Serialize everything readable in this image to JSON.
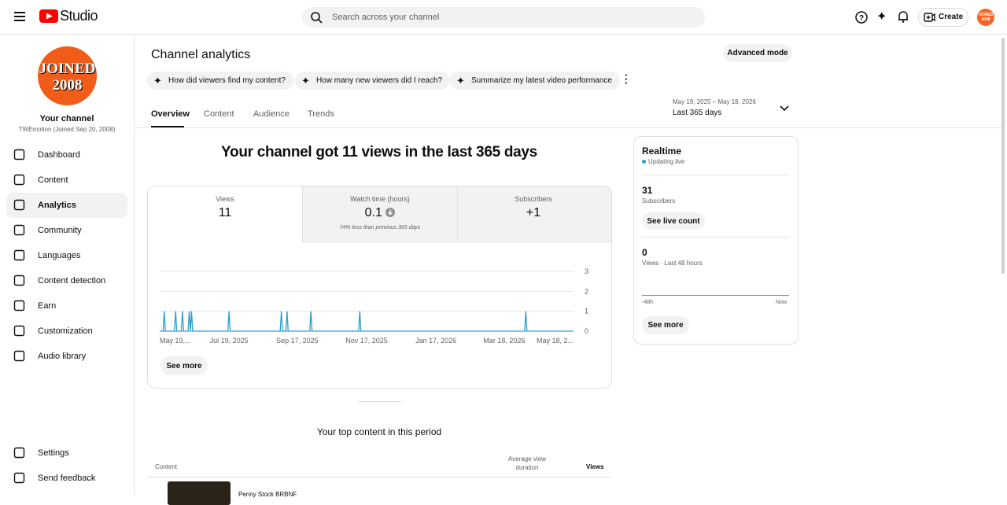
{
  "header": {
    "logo": "Studio",
    "search_placeholder": "Search across your channel",
    "create": "Create",
    "avatar": "JOINED 2008"
  },
  "sidebar": {
    "avatar_line1": "JOINED",
    "avatar_line2": "2008",
    "channel_title": "Your channel",
    "channel_name": "TWEmotion (Joined Sep 20, 2008)",
    "nav": [
      "Dashboard",
      "Content",
      "Analytics",
      "Community",
      "Languages",
      "Content detection",
      "Earn",
      "Customization",
      "Audio library"
    ],
    "footer": [
      "Settings",
      "Send feedback"
    ]
  },
  "page": {
    "title": "Channel analytics",
    "advanced": "Advanced mode",
    "chips": [
      "How did viewers find my content?",
      "How many new viewers did I reach?",
      "Summarize my latest video performance"
    ],
    "tabs": [
      "Overview",
      "Content",
      "Audience",
      "Trends"
    ],
    "date_range": "May 19, 2025 – May 18, 2026",
    "date_label": "Last 365 days",
    "headline": "Your channel got 11 views in the last 365 days",
    "see_more": "See more"
  },
  "metrics": [
    {
      "label": "Views",
      "value": "11"
    },
    {
      "label": "Watch time (hours)",
      "value": "0.1",
      "note": "74% less than previous 365 days"
    },
    {
      "label": "Subscribers",
      "value": "+1"
    }
  ],
  "chart_data": {
    "type": "line",
    "x": [
      0,
      3,
      4,
      5,
      13,
      14,
      15,
      19,
      20,
      21,
      25,
      26,
      27,
      28,
      29,
      60,
      61,
      62,
      106,
      107,
      108,
      111,
      112,
      113,
      132,
      133,
      134,
      175,
      176,
      177,
      321,
      322,
      323,
      364
    ],
    "series": [
      {
        "name": "Views",
        "color": "#2b9fd0",
        "values": [
          0,
          0,
          1,
          0,
          0,
          1,
          0,
          0,
          1,
          0,
          0,
          1,
          0,
          1,
          0,
          0,
          1,
          0,
          0,
          1,
          0,
          0,
          1,
          0,
          0,
          1,
          0,
          0,
          1,
          0,
          0,
          1,
          0,
          0
        ]
      }
    ],
    "xlim": [
      0,
      364
    ],
    "xticks": [
      {
        "value": 0,
        "label": "May 19,..."
      },
      {
        "value": 61,
        "label": "Jul 19, 2025"
      },
      {
        "value": 121,
        "label": "Sep 17, 2025"
      },
      {
        "value": 182,
        "label": "Nov 17, 2025"
      },
      {
        "value": 243,
        "label": "Jan 17, 2026"
      },
      {
        "value": 303,
        "label": "Mar 18, 2026"
      },
      {
        "value": 364,
        "label": "May 18, 2..."
      }
    ],
    "ylim": [
      0,
      3
    ],
    "yticks": [
      0,
      1,
      2,
      3
    ],
    "grid": true
  },
  "realtime": {
    "title": "Realtime",
    "status": "Updating live",
    "subs_value": "31",
    "subs_label": "Subscribers",
    "live_button": "See live count",
    "views_value": "0",
    "views_label": "Views · Last 48 hours",
    "axis_start": "-48h",
    "axis_end": "Now",
    "see_more": "See more"
  },
  "top_content": {
    "title": "Your top content in this period",
    "col_content": "Content",
    "col_duration": "Average view duration",
    "col_views": "Views",
    "rows": [
      {
        "title": "Penny Stock BRBNF"
      }
    ]
  }
}
